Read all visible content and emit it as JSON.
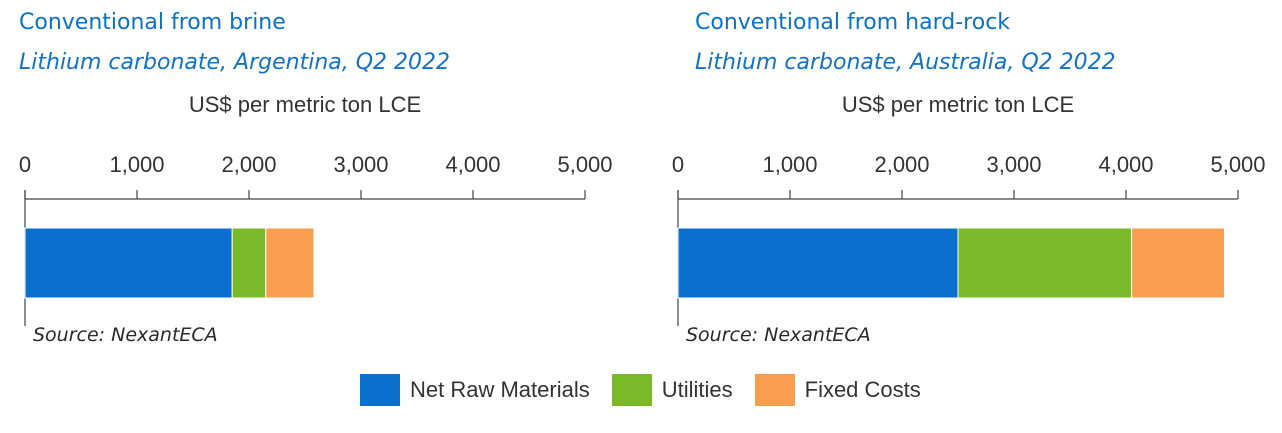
{
  "legend": [
    {
      "label": "Net Raw Materials",
      "color": "#0b6fce"
    },
    {
      "label": "Utilities",
      "color": "#7aba28"
    },
    {
      "label": "Fixed Costs",
      "color": "#f99e4e"
    }
  ],
  "chart_data": [
    {
      "type": "bar",
      "orientation": "horizontal",
      "stacked": true,
      "title": "Conventional from brine",
      "subtitle": "Lithium carbonate, Argentina, Q2 2022",
      "xlabel": "US$ per metric ton LCE",
      "xlim": [
        0,
        5000
      ],
      "ticks": [
        0,
        1000,
        2000,
        3000,
        4000,
        5000
      ],
      "tick_labels": [
        "0",
        "1,000",
        "2,000",
        "3,000",
        "4,000",
        "5,000"
      ],
      "source": "Source: NexantECA",
      "series": [
        {
          "name": "Net Raw Materials",
          "values": [
            1850
          ]
        },
        {
          "name": "Utilities",
          "values": [
            300
          ]
        },
        {
          "name": "Fixed Costs",
          "values": [
            430
          ]
        }
      ]
    },
    {
      "type": "bar",
      "orientation": "horizontal",
      "stacked": true,
      "title": "Conventional from hard-rock",
      "subtitle": "Lithium carbonate, Australia, Q2 2022",
      "xlabel": "US$ per metric ton LCE",
      "xlim": [
        0,
        5000
      ],
      "ticks": [
        0,
        1000,
        2000,
        3000,
        4000,
        5000
      ],
      "tick_labels": [
        "0",
        "1,000",
        "2,000",
        "3,000",
        "4,000",
        "5,000"
      ],
      "source": "Source: NexantECA",
      "series": [
        {
          "name": "Net Raw Materials",
          "values": [
            2500
          ]
        },
        {
          "name": "Utilities",
          "values": [
            1550
          ]
        },
        {
          "name": "Fixed Costs",
          "values": [
            830
          ]
        }
      ]
    }
  ]
}
